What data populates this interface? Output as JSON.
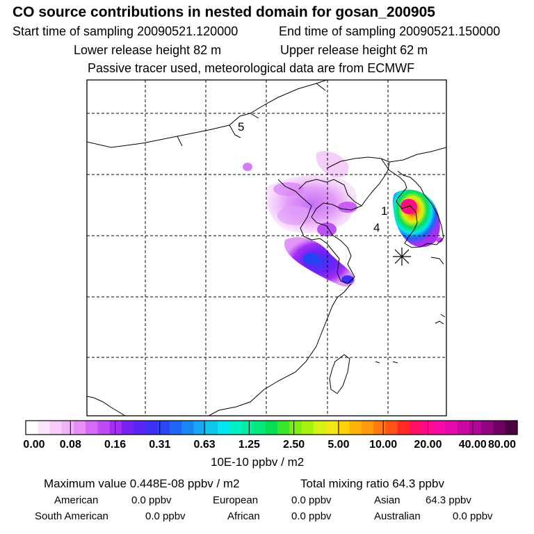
{
  "header": {
    "title": "CO  source contributions in nested domain for gosan_200905",
    "start_label": "Start time of sampling 20090521.120000",
    "end_label": "End time of sampling 20090521.150000",
    "lower_label": "Lower release height   82 m",
    "upper_label": "Upper release height   62 m",
    "note": "Passive tracer used, meteorological data are from ECMWF"
  },
  "chart_data": {
    "type": "heatmap",
    "title": "CO  source contributions in nested domain for gosan_200905",
    "annotations": [
      "5",
      "1",
      "4"
    ],
    "colorbar": {
      "ticks": [
        "0.00",
        "0.08",
        "0.16",
        "0.31",
        "0.63",
        "1.25",
        "2.50",
        "5.00",
        "10.00",
        "20.00",
        "40.00",
        "80.00"
      ],
      "colors": [
        "#ffffff",
        "#fce6fc",
        "#f9cdf9",
        "#f3b3f7",
        "#e68ff5",
        "#d56af5",
        "#c24af5",
        "#a72ef5",
        "#7a22f5",
        "#5a26f5",
        "#3c31f5",
        "#2a46f5",
        "#1e66f5",
        "#1a86f5",
        "#17a6f0",
        "#11c7ee",
        "#05e6f0",
        "#05f0c6",
        "#05eea0",
        "#05e87a",
        "#08dc55",
        "#3ae62a",
        "#7cee12",
        "#a8f212",
        "#d6f212",
        "#f4e612",
        "#ffcf08",
        "#ffb40a",
        "#ff9c0c",
        "#ff7a10",
        "#ff5418",
        "#ff2a24",
        "#ff1064",
        "#ff0a8c",
        "#f70aa6",
        "#e40ab0",
        "#cc08a4",
        "#b10696",
        "#900480",
        "#6e0364",
        "#4d0244"
      ],
      "unit_label": "10E-10 ppbv / m2"
    },
    "max_value": "Maximum value  0.448E-08 ppbv / m2",
    "total_mixing_ratio": "Total mixing ratio       64.3 ppbv"
  },
  "summary": {
    "american_label": "American",
    "american_value": "0.0 ppbv",
    "european_label": "European",
    "european_value": "0.0 ppbv",
    "asian_label": "Asian",
    "asian_value": "64.3 ppbv",
    "south_american_label": "South American",
    "south_american_value": "0.0 ppbv",
    "african_label": "African",
    "african_value": "0.0 ppbv",
    "australian_label": "Australian",
    "australian_value": "0.0 ppbv"
  }
}
